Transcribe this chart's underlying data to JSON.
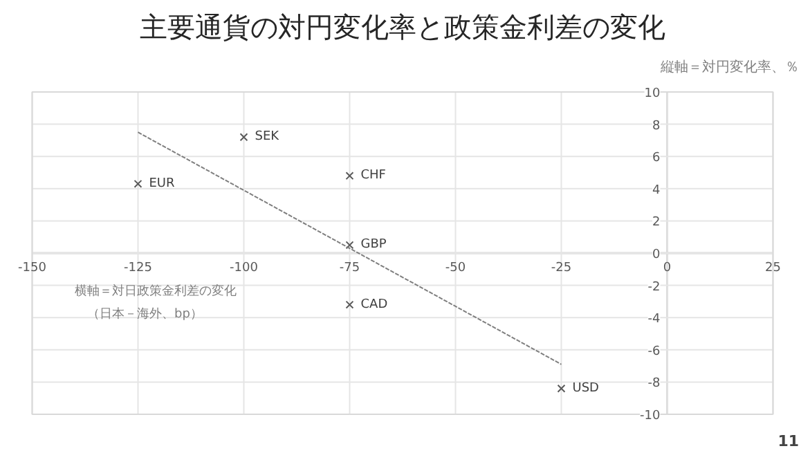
{
  "chart_data": {
    "type": "scatter",
    "title": "主要通貨の対円変化率と政策金利差の変化",
    "xlabel": "横軸＝対日政策金利差の変化",
    "ylabel": "縦軸＝対円変化率、％",
    "x": [
      -125,
      -100,
      -75,
      -75,
      -75,
      -25
    ],
    "series": [
      {
        "color": "#595959",
        "values": [
          4.3,
          7.2,
          4.8,
          0.5,
          -3.2,
          -8.4
        ],
        "marker": "cross"
      },
      {
        "type": "line",
        "color": "#7f7f7f",
        "x": [
          -125,
          -25
        ],
        "values": [
          7.5,
          -6.9
        ],
        "line_style": "dotted",
        "marker": "none"
      }
    ],
    "annotations": [
      {
        "text": "EUR",
        "x": -125,
        "y": 4.3
      },
      {
        "text": "SEK",
        "x": -100,
        "y": 7.2
      },
      {
        "text": "CHF",
        "x": -75,
        "y": 4.8
      },
      {
        "text": "GBP",
        "x": -75,
        "y": 0.5
      },
      {
        "text": "CAD",
        "x": -75,
        "y": -3.2
      },
      {
        "text": "USD",
        "x": -25,
        "y": -8.4
      },
      "（日本－海外、bp）",
      "11"
    ],
    "xlim": [
      -150,
      25
    ],
    "ylim": [
      -10,
      10
    ],
    "xticks": [
      -150,
      -125,
      -100,
      -75,
      -50,
      -25,
      0,
      25
    ],
    "yticks": [
      -10,
      -8,
      -6,
      -4,
      -2,
      0,
      2,
      4,
      6,
      8,
      10
    ],
    "grid": true
  }
}
